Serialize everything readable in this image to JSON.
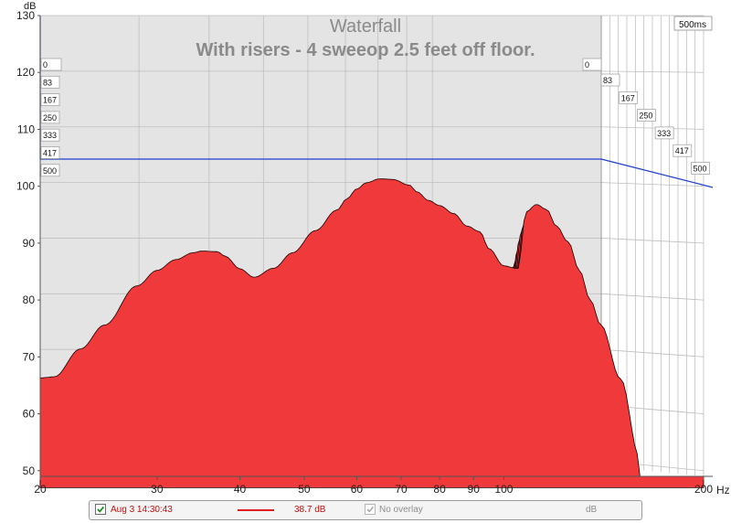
{
  "chart_data": {
    "type": "area",
    "title": "Waterfall",
    "subtitle": "With risers - 4 sweeop  2.5 feet off floor.",
    "ylabel": "dB",
    "xlabel": "Hz",
    "x_scale": "log",
    "xlim": [
      20,
      200
    ],
    "ylim": [
      49,
      130
    ],
    "x_ticks": [
      {
        "value": 20,
        "label": "20"
      },
      {
        "value": 30,
        "label": "30"
      },
      {
        "value": 40,
        "label": "40"
      },
      {
        "value": 50,
        "label": "50"
      },
      {
        "value": 60,
        "label": "60"
      },
      {
        "value": 70,
        "label": "70"
      },
      {
        "value": 80,
        "label": "80"
      },
      {
        "value": 90,
        "label": "90"
      },
      {
        "value": 100,
        "label": "100"
      },
      {
        "value": 200,
        "label": "200"
      }
    ],
    "y_ticks": [
      {
        "value": 50,
        "label": "50"
      },
      {
        "value": 60,
        "label": "60"
      },
      {
        "value": 70,
        "label": "70"
      },
      {
        "value": 80,
        "label": "80"
      },
      {
        "value": 90,
        "label": "90"
      },
      {
        "value": 100,
        "label": "100"
      },
      {
        "value": 110,
        "label": "110"
      },
      {
        "value": 120,
        "label": "120"
      },
      {
        "value": 130,
        "label": "130"
      }
    ],
    "time_axis_label": "500ms",
    "time_slices_ms": [
      "0",
      "83",
      "167",
      "250",
      "333",
      "417",
      "500"
    ],
    "front_response": {
      "x": [
        20,
        21,
        23,
        25,
        28,
        30,
        32,
        34,
        35,
        37,
        38,
        40,
        42,
        45,
        48,
        52,
        56,
        58,
        60,
        62,
        65,
        68,
        72,
        74,
        77,
        80,
        84,
        88,
        92,
        95,
        100,
        105,
        108,
        112,
        116,
        120,
        125,
        130,
        135,
        140,
        150,
        160
      ],
      "y": [
        66.3,
        66.5,
        71.4,
        75.6,
        82.5,
        85.2,
        87.1,
        88.3,
        88.6,
        88.5,
        87.7,
        85.5,
        84.0,
        85.6,
        88.3,
        92.2,
        95.8,
        97.8,
        99.5,
        100.6,
        101.3,
        101.2,
        100.2,
        99.0,
        97.5,
        96.6,
        95.2,
        93.0,
        92.0,
        89.0,
        86.0,
        85.5,
        95.5,
        96.8,
        95.9,
        93.0,
        90.2,
        85.2,
        80.0,
        75.6,
        66.1,
        52.5
      ]
    },
    "legend": {
      "measurement": "Aug 3 14:30:43",
      "level": "38.7 dB",
      "overlay": "No overlay",
      "unit": "dB"
    },
    "colors": {
      "fill": "#f0393b",
      "line": "#1a0000",
      "back_wall": "#e4e4e4",
      "grid": "#bfbfbf",
      "reference_line": "#1f3fd0"
    },
    "grid": true
  }
}
